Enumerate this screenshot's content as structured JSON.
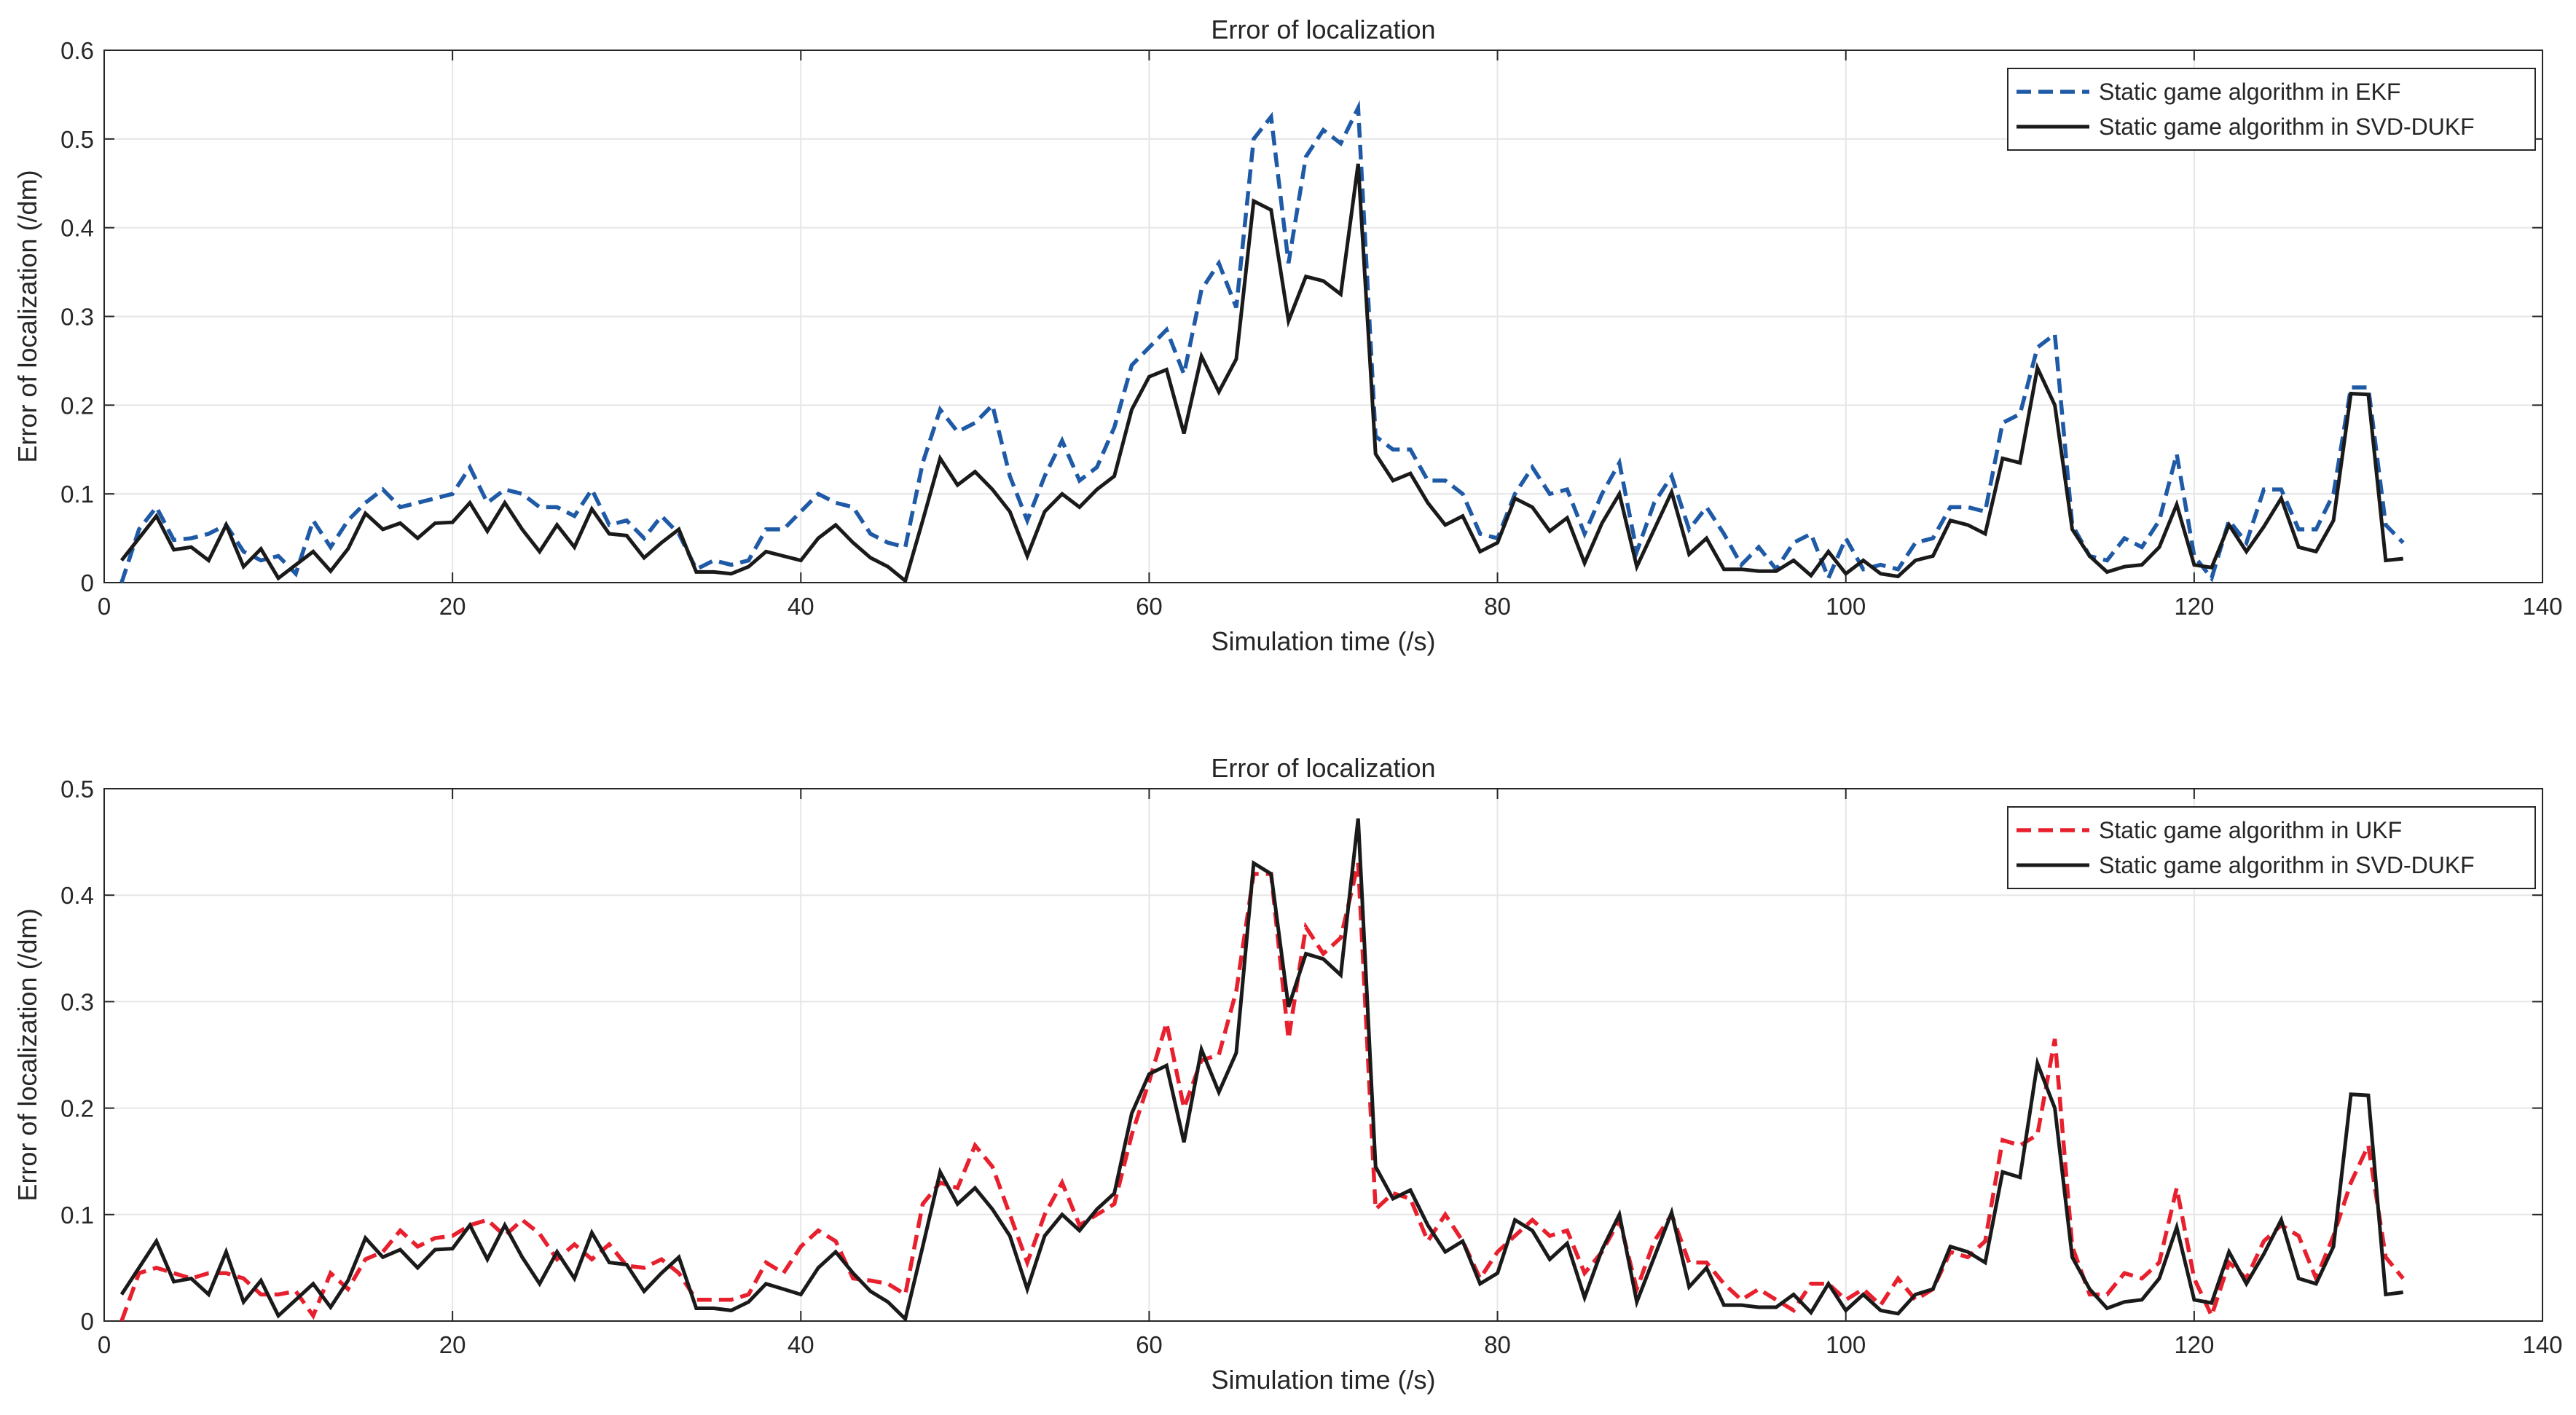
{
  "chart_data": [
    {
      "type": "line",
      "title": "Error of localization",
      "xlabel": "Simulation time (/s)",
      "ylabel": "Error of localization (/dm)",
      "xlim": [
        0,
        140
      ],
      "ylim": [
        0,
        0.6
      ],
      "xticks": [
        0,
        20,
        40,
        60,
        80,
        100,
        120,
        140
      ],
      "yticks": [
        0,
        0.1,
        0.2,
        0.3,
        0.4,
        0.5,
        0.6
      ],
      "xtick_labels": [
        "0",
        "20",
        "40",
        "60",
        "80",
        "100",
        "120",
        "140"
      ],
      "ytick_labels": [
        "0",
        "0.1",
        "0.2",
        "0.3",
        "0.4",
        "0.5",
        "0.6"
      ],
      "grid": true,
      "legend_position": "top-right",
      "x_start": 1,
      "series": [
        {
          "name": "Static game algorithm in EKF",
          "color": "#1f5aa6",
          "dash": "dashed",
          "values": [
            0.0,
            0.06,
            0.085,
            0.048,
            0.05,
            0.055,
            0.065,
            0.035,
            0.025,
            0.03,
            0.01,
            0.07,
            0.04,
            0.07,
            0.09,
            0.105,
            0.085,
            0.09,
            0.095,
            0.1,
            0.13,
            0.09,
            0.105,
            0.1,
            0.085,
            0.085,
            0.075,
            0.105,
            0.065,
            0.07,
            0.05,
            0.075,
            0.055,
            0.015,
            0.025,
            0.02,
            0.025,
            0.06,
            0.06,
            0.08,
            0.1,
            0.09,
            0.085,
            0.055,
            0.045,
            0.04,
            0.135,
            0.195,
            0.17,
            0.18,
            0.2,
            0.12,
            0.07,
            0.12,
            0.16,
            0.115,
            0.13,
            0.175,
            0.245,
            0.265,
            0.285,
            0.235,
            0.33,
            0.36,
            0.31,
            0.5,
            0.525,
            0.36,
            0.48,
            0.51,
            0.495,
            0.535,
            0.165,
            0.15,
            0.15,
            0.115,
            0.115,
            0.1,
            0.055,
            0.05,
            0.1,
            0.13,
            0.1,
            0.105,
            0.055,
            0.1,
            0.135,
            0.035,
            0.09,
            0.12,
            0.06,
            0.085,
            0.055,
            0.02,
            0.04,
            0.015,
            0.045,
            0.055,
            0.005,
            0.05,
            0.015,
            0.02,
            0.015,
            0.045,
            0.05,
            0.085,
            0.085,
            0.08,
            0.18,
            0.19,
            0.265,
            0.28,
            0.065,
            0.03,
            0.025,
            0.05,
            0.04,
            0.07,
            0.145,
            0.03,
            0.005,
            0.07,
            0.045,
            0.105,
            0.105,
            0.06,
            0.06,
            0.1,
            0.22,
            0.22,
            0.065,
            0.045
          ]
        },
        {
          "name": "Static game algorithm in SVD-DUKF",
          "color": "#1a1a1a",
          "dash": "solid",
          "values": [
            0.025,
            0.05,
            0.075,
            0.037,
            0.04,
            0.025,
            0.065,
            0.018,
            0.038,
            0.005,
            0.02,
            0.035,
            0.013,
            0.038,
            0.078,
            0.06,
            0.067,
            0.05,
            0.067,
            0.068,
            0.09,
            0.058,
            0.09,
            0.06,
            0.035,
            0.065,
            0.04,
            0.083,
            0.055,
            0.053,
            0.028,
            0.045,
            0.06,
            0.012,
            0.012,
            0.01,
            0.018,
            0.035,
            0.03,
            0.025,
            0.05,
            0.065,
            0.045,
            0.028,
            0.018,
            0.002,
            0.07,
            0.14,
            0.11,
            0.125,
            0.105,
            0.08,
            0.03,
            0.08,
            0.1,
            0.085,
            0.105,
            0.12,
            0.195,
            0.232,
            0.24,
            0.168,
            0.255,
            0.215,
            0.252,
            0.43,
            0.42,
            0.295,
            0.345,
            0.34,
            0.325,
            0.472,
            0.145,
            0.115,
            0.123,
            0.09,
            0.065,
            0.075,
            0.035,
            0.045,
            0.095,
            0.085,
            0.058,
            0.073,
            0.022,
            0.067,
            0.1,
            0.018,
            0.06,
            0.102,
            0.032,
            0.05,
            0.015,
            0.015,
            0.013,
            0.013,
            0.025,
            0.008,
            0.035,
            0.01,
            0.025,
            0.01,
            0.007,
            0.025,
            0.03,
            0.07,
            0.065,
            0.055,
            0.14,
            0.135,
            0.242,
            0.2,
            0.06,
            0.03,
            0.012,
            0.018,
            0.02,
            0.04,
            0.088,
            0.02,
            0.017,
            0.065,
            0.035,
            0.063,
            0.095,
            0.04,
            0.035,
            0.07,
            0.213,
            0.212,
            0.025,
            0.027
          ]
        }
      ]
    },
    {
      "type": "line",
      "title": "Error of localization",
      "xlabel": "Simulation time (/s)",
      "ylabel": "Error of localization (/dm)",
      "xlim": [
        0,
        140
      ],
      "ylim": [
        0,
        0.5
      ],
      "xticks": [
        0,
        20,
        40,
        60,
        80,
        100,
        120,
        140
      ],
      "yticks": [
        0,
        0.1,
        0.2,
        0.3,
        0.4,
        0.5
      ],
      "xtick_labels": [
        "0",
        "20",
        "40",
        "60",
        "80",
        "100",
        "120",
        "140"
      ],
      "ytick_labels": [
        "0",
        "0.1",
        "0.2",
        "0.3",
        "0.4",
        "0.5"
      ],
      "grid": true,
      "legend_position": "top-right",
      "x_start": 1,
      "series": [
        {
          "name": "Static game algorithm in UKF",
          "color": "#e8202e",
          "dash": "dashed",
          "values": [
            0.0,
            0.045,
            0.05,
            0.045,
            0.04,
            0.045,
            0.045,
            0.04,
            0.025,
            0.025,
            0.028,
            0.005,
            0.045,
            0.03,
            0.058,
            0.065,
            0.085,
            0.07,
            0.078,
            0.08,
            0.09,
            0.095,
            0.08,
            0.095,
            0.082,
            0.058,
            0.072,
            0.058,
            0.072,
            0.052,
            0.05,
            0.058,
            0.045,
            0.02,
            0.02,
            0.02,
            0.025,
            0.055,
            0.045,
            0.07,
            0.085,
            0.075,
            0.04,
            0.038,
            0.035,
            0.025,
            0.11,
            0.13,
            0.125,
            0.165,
            0.145,
            0.1,
            0.055,
            0.1,
            0.13,
            0.09,
            0.1,
            0.11,
            0.175,
            0.225,
            0.28,
            0.2,
            0.245,
            0.25,
            0.31,
            0.42,
            0.42,
            0.265,
            0.37,
            0.345,
            0.36,
            0.43,
            0.105,
            0.12,
            0.115,
            0.075,
            0.1,
            0.075,
            0.04,
            0.065,
            0.08,
            0.095,
            0.08,
            0.085,
            0.045,
            0.065,
            0.095,
            0.03,
            0.075,
            0.1,
            0.055,
            0.055,
            0.035,
            0.02,
            0.03,
            0.02,
            0.01,
            0.035,
            0.035,
            0.02,
            0.03,
            0.015,
            0.04,
            0.02,
            0.03,
            0.065,
            0.06,
            0.075,
            0.17,
            0.165,
            0.175,
            0.265,
            0.07,
            0.025,
            0.025,
            0.045,
            0.04,
            0.055,
            0.125,
            0.04,
            0.005,
            0.055,
            0.04,
            0.075,
            0.09,
            0.08,
            0.04,
            0.08,
            0.13,
            0.165,
            0.06,
            0.04
          ]
        },
        {
          "name": "Static game algorithm in SVD-DUKF",
          "color": "#1a1a1a",
          "dash": "solid",
          "values": [
            0.025,
            0.05,
            0.075,
            0.037,
            0.04,
            0.025,
            0.065,
            0.018,
            0.038,
            0.005,
            0.02,
            0.035,
            0.013,
            0.038,
            0.078,
            0.06,
            0.067,
            0.05,
            0.067,
            0.068,
            0.09,
            0.058,
            0.09,
            0.06,
            0.035,
            0.065,
            0.04,
            0.083,
            0.055,
            0.053,
            0.028,
            0.045,
            0.06,
            0.012,
            0.012,
            0.01,
            0.018,
            0.035,
            0.03,
            0.025,
            0.05,
            0.065,
            0.045,
            0.028,
            0.018,
            0.002,
            0.07,
            0.14,
            0.11,
            0.125,
            0.105,
            0.08,
            0.03,
            0.08,
            0.1,
            0.085,
            0.105,
            0.12,
            0.195,
            0.232,
            0.24,
            0.168,
            0.255,
            0.215,
            0.252,
            0.43,
            0.42,
            0.295,
            0.345,
            0.34,
            0.325,
            0.472,
            0.145,
            0.115,
            0.123,
            0.09,
            0.065,
            0.075,
            0.035,
            0.045,
            0.095,
            0.085,
            0.058,
            0.073,
            0.022,
            0.067,
            0.1,
            0.018,
            0.06,
            0.102,
            0.032,
            0.05,
            0.015,
            0.015,
            0.013,
            0.013,
            0.025,
            0.008,
            0.035,
            0.01,
            0.025,
            0.01,
            0.007,
            0.025,
            0.03,
            0.07,
            0.065,
            0.055,
            0.14,
            0.135,
            0.242,
            0.2,
            0.06,
            0.03,
            0.012,
            0.018,
            0.02,
            0.04,
            0.088,
            0.02,
            0.017,
            0.065,
            0.035,
            0.063,
            0.095,
            0.04,
            0.035,
            0.07,
            0.213,
            0.212,
            0.025,
            0.027
          ]
        }
      ]
    }
  ]
}
